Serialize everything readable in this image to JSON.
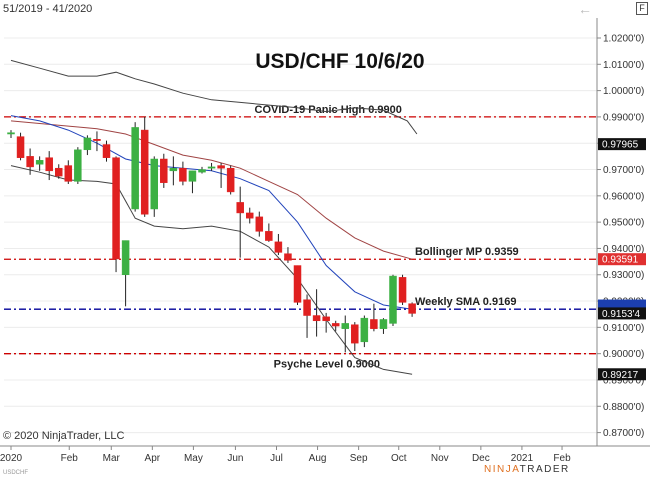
{
  "topbar": {
    "range_label": "51/2019 - 41/2020",
    "back_icon": "back-arrow-icon",
    "badge_label": "F"
  },
  "footer": {
    "copyright": "© 2020 NinjaTrader, LLC",
    "brand_prefix": "NINJA",
    "brand_suffix": "TRADER",
    "corner_label": "USDCHF"
  },
  "colors": {
    "bull": "#3cb043",
    "bear": "#e02020",
    "sma_line": "#2244bb",
    "bollinger_mid": "#a04444",
    "bollinger_band": "#444444",
    "red_level": "#cc0000",
    "blue_level": "#000099",
    "price_tag_dark": "#111111",
    "price_tag_red": "#e03030",
    "price_tag_blue": "#1c3fb0"
  },
  "chart_data": {
    "type": "candlestick",
    "title": "USD/CHF 10/6/20",
    "ylim": [
      0.8649,
      1.0276
    ],
    "y_ticks": [
      {
        "value": 1.02,
        "label": "1.0200'0)"
      },
      {
        "value": 1.01,
        "label": "1.0100'0)"
      },
      {
        "value": 1.0,
        "label": "1.0000'0)"
      },
      {
        "value": 0.99,
        "label": "0.9900'0)"
      },
      {
        "value": 0.98,
        "label": "0.9800'0)"
      },
      {
        "value": 0.97,
        "label": "0.9700'0)"
      },
      {
        "value": 0.96,
        "label": "0.9600'0)"
      },
      {
        "value": 0.95,
        "label": "0.9500'0)"
      },
      {
        "value": 0.94,
        "label": "0.9400'0)"
      },
      {
        "value": 0.93,
        "label": "0.9300'0)"
      },
      {
        "value": 0.92,
        "label": "0.9200'0)"
      },
      {
        "value": 0.91,
        "label": "0.9100'0)"
      },
      {
        "value": 0.9,
        "label": "0.9000'0)"
      },
      {
        "value": 0.89,
        "label": "0.8900'0)"
      },
      {
        "value": 0.88,
        "label": "0.8800'0)"
      },
      {
        "value": 0.87,
        "label": "0.8700'0)"
      }
    ],
    "x_labels": [
      "2020",
      "Feb",
      "Mar",
      "Apr",
      "May",
      "Jun",
      "Jul",
      "Aug",
      "Sep",
      "Oct",
      "Nov",
      "Dec",
      "2021",
      "Feb"
    ],
    "x_ticks": [
      0,
      6.1,
      10.5,
      14.8,
      19.1,
      23.5,
      27.8,
      32.1,
      36.4,
      40.6,
      44.9,
      49.2,
      53.5,
      57.7
    ],
    "candles": [
      {
        "x": 0,
        "o": 0.9835,
        "h": 0.985,
        "l": 0.982,
        "c": 0.984
      },
      {
        "x": 1,
        "o": 0.9825,
        "h": 0.984,
        "l": 0.9735,
        "c": 0.9745
      },
      {
        "x": 2,
        "o": 0.975,
        "h": 0.978,
        "l": 0.968,
        "c": 0.971
      },
      {
        "x": 3,
        "o": 0.972,
        "h": 0.975,
        "l": 0.9695,
        "c": 0.9735
      },
      {
        "x": 4,
        "o": 0.9745,
        "h": 0.977,
        "l": 0.966,
        "c": 0.9695
      },
      {
        "x": 5,
        "o": 0.9705,
        "h": 0.972,
        "l": 0.9665,
        "c": 0.9675
      },
      {
        "x": 6,
        "o": 0.9715,
        "h": 0.9735,
        "l": 0.9645,
        "c": 0.9655
      },
      {
        "x": 7,
        "o": 0.9655,
        "h": 0.9785,
        "l": 0.9645,
        "c": 0.9775
      },
      {
        "x": 8,
        "o": 0.9775,
        "h": 0.983,
        "l": 0.9755,
        "c": 0.982
      },
      {
        "x": 9,
        "o": 0.9815,
        "h": 0.9845,
        "l": 0.977,
        "c": 0.981
      },
      {
        "x": 10,
        "o": 0.9795,
        "h": 0.981,
        "l": 0.973,
        "c": 0.9745
      },
      {
        "x": 11,
        "o": 0.9745,
        "h": 0.975,
        "l": 0.931,
        "c": 0.936
      },
      {
        "x": 12,
        "o": 0.93,
        "h": 0.943,
        "l": 0.918,
        "c": 0.943
      },
      {
        "x": 13,
        "o": 0.955,
        "h": 0.988,
        "l": 0.954,
        "c": 0.986
      },
      {
        "x": 14,
        "o": 0.985,
        "h": 0.99,
        "l": 0.952,
        "c": 0.953
      },
      {
        "x": 15,
        "o": 0.955,
        "h": 0.975,
        "l": 0.952,
        "c": 0.974
      },
      {
        "x": 16,
        "o": 0.974,
        "h": 0.976,
        "l": 0.963,
        "c": 0.965
      },
      {
        "x": 17,
        "o": 0.9695,
        "h": 0.975,
        "l": 0.964,
        "c": 0.9705
      },
      {
        "x": 18,
        "o": 0.9705,
        "h": 0.973,
        "l": 0.964,
        "c": 0.9655
      },
      {
        "x": 19,
        "o": 0.9655,
        "h": 0.9695,
        "l": 0.961,
        "c": 0.9695
      },
      {
        "x": 20,
        "o": 0.969,
        "h": 0.971,
        "l": 0.9685,
        "c": 0.97
      },
      {
        "x": 21,
        "o": 0.9705,
        "h": 0.9725,
        "l": 0.9695,
        "c": 0.971
      },
      {
        "x": 22,
        "o": 0.9715,
        "h": 0.9725,
        "l": 0.963,
        "c": 0.9705
      },
      {
        "x": 23,
        "o": 0.9705,
        "h": 0.9715,
        "l": 0.9605,
        "c": 0.9615
      },
      {
        "x": 24,
        "o": 0.9575,
        "h": 0.9635,
        "l": 0.9365,
        "c": 0.9535
      },
      {
        "x": 25,
        "o": 0.9535,
        "h": 0.9555,
        "l": 0.9495,
        "c": 0.9515
      },
      {
        "x": 26,
        "o": 0.952,
        "h": 0.954,
        "l": 0.9445,
        "c": 0.9465
      },
      {
        "x": 27,
        "o": 0.9465,
        "h": 0.9495,
        "l": 0.9425,
        "c": 0.943
      },
      {
        "x": 28,
        "o": 0.9425,
        "h": 0.9455,
        "l": 0.9375,
        "c": 0.9385
      },
      {
        "x": 29,
        "o": 0.938,
        "h": 0.9405,
        "l": 0.9345,
        "c": 0.9355
      },
      {
        "x": 30,
        "o": 0.9335,
        "h": 0.9335,
        "l": 0.9185,
        "c": 0.9195
      },
      {
        "x": 31,
        "o": 0.9205,
        "h": 0.9225,
        "l": 0.906,
        "c": 0.9145
      },
      {
        "x": 32,
        "o": 0.9145,
        "h": 0.9245,
        "l": 0.9065,
        "c": 0.9125
      },
      {
        "x": 33,
        "o": 0.914,
        "h": 0.9155,
        "l": 0.908,
        "c": 0.9125
      },
      {
        "x": 34,
        "o": 0.9115,
        "h": 0.9125,
        "l": 0.9085,
        "c": 0.9105
      },
      {
        "x": 35,
        "o": 0.9095,
        "h": 0.9145,
        "l": 0.9005,
        "c": 0.9115
      },
      {
        "x": 36,
        "o": 0.911,
        "h": 0.912,
        "l": 0.901,
        "c": 0.904
      },
      {
        "x": 37,
        "o": 0.9045,
        "h": 0.9145,
        "l": 0.9025,
        "c": 0.9135
      },
      {
        "x": 38,
        "o": 0.913,
        "h": 0.919,
        "l": 0.9085,
        "c": 0.9095
      },
      {
        "x": 39,
        "o": 0.9095,
        "h": 0.9135,
        "l": 0.9075,
        "c": 0.913
      },
      {
        "x": 40,
        "o": 0.9115,
        "h": 0.93,
        "l": 0.9105,
        "c": 0.9295
      },
      {
        "x": 41,
        "o": 0.929,
        "h": 0.93,
        "l": 0.9185,
        "c": 0.9195
      },
      {
        "x": 42,
        "o": 0.919,
        "h": 0.9195,
        "l": 0.914,
        "c": 0.9153
      }
    ],
    "sma": {
      "x": [
        0,
        3,
        6,
        9,
        12,
        15,
        18,
        21,
        24,
        27,
        30,
        33,
        36,
        39,
        42
      ],
      "y": [
        0.9905,
        0.9885,
        0.985,
        0.98,
        0.974,
        0.9715,
        0.9705,
        0.9695,
        0.9665,
        0.962,
        0.95,
        0.9335,
        0.9235,
        0.9185,
        0.9169
      ]
    },
    "bollinger_mid": {
      "x": [
        0,
        3,
        6,
        9,
        12,
        15,
        18,
        21,
        24,
        27,
        30,
        33,
        36,
        39,
        42
      ],
      "y": [
        0.9885,
        0.9875,
        0.9865,
        0.9855,
        0.9835,
        0.9795,
        0.9755,
        0.9735,
        0.9705,
        0.9655,
        0.9605,
        0.9515,
        0.944,
        0.939,
        0.9359
      ]
    },
    "bollinger_upper": {
      "x": [
        0,
        3,
        6,
        9,
        11,
        13,
        15,
        18,
        21,
        24,
        27,
        30,
        33,
        36,
        39,
        41.5,
        42.5
      ],
      "y": [
        1.0115,
        1.0085,
        1.0055,
        1.0055,
        1.007,
        1.0045,
        1.0025,
        0.999,
        0.9965,
        0.9955,
        0.9945,
        0.9935,
        0.992,
        0.9935,
        0.9925,
        0.9885,
        0.9835
      ]
    },
    "bollinger_lower": {
      "x": [
        0,
        3,
        6,
        9,
        11,
        13,
        15,
        18,
        21,
        24,
        27,
        30,
        33,
        36,
        39,
        42
      ],
      "y": [
        0.9715,
        0.969,
        0.966,
        0.9655,
        0.9645,
        0.9515,
        0.9485,
        0.9475,
        0.9485,
        0.9465,
        0.9405,
        0.9285,
        0.913,
        0.8985,
        0.894,
        0.8922
      ]
    },
    "levels": [
      {
        "key": "covid",
        "value": 0.99,
        "label": "COVID-19 Panic High 0.9900",
        "color": "red",
        "label_x": 25.5,
        "label_pos": "above"
      },
      {
        "key": "bollinger",
        "value": 0.9359,
        "label": "Bollinger MP 0.9359",
        "color": "red",
        "label_x": 42.3,
        "label_pos": "above"
      },
      {
        "key": "sma",
        "value": 0.9169,
        "label": "Weekly SMA  0.9169",
        "color": "blue",
        "label_x": 42.3,
        "label_pos": "above"
      },
      {
        "key": "psyche",
        "value": 0.9,
        "label": "Psyche Level 0.9000",
        "color": "red",
        "label_x": 27.5,
        "label_pos": "below"
      }
    ],
    "price_tags": [
      {
        "value": 0.97965,
        "label": "0.97965",
        "style": "dark"
      },
      {
        "value": 0.93591,
        "label": "0.93591",
        "style": "red"
      },
      {
        "value": 0.9183,
        "label": "",
        "style": "blue"
      },
      {
        "value": 0.9153,
        "label": "0.9153'4",
        "style": "dark"
      },
      {
        "value": 0.89217,
        "label": "0.89217",
        "style": "dark"
      }
    ]
  }
}
